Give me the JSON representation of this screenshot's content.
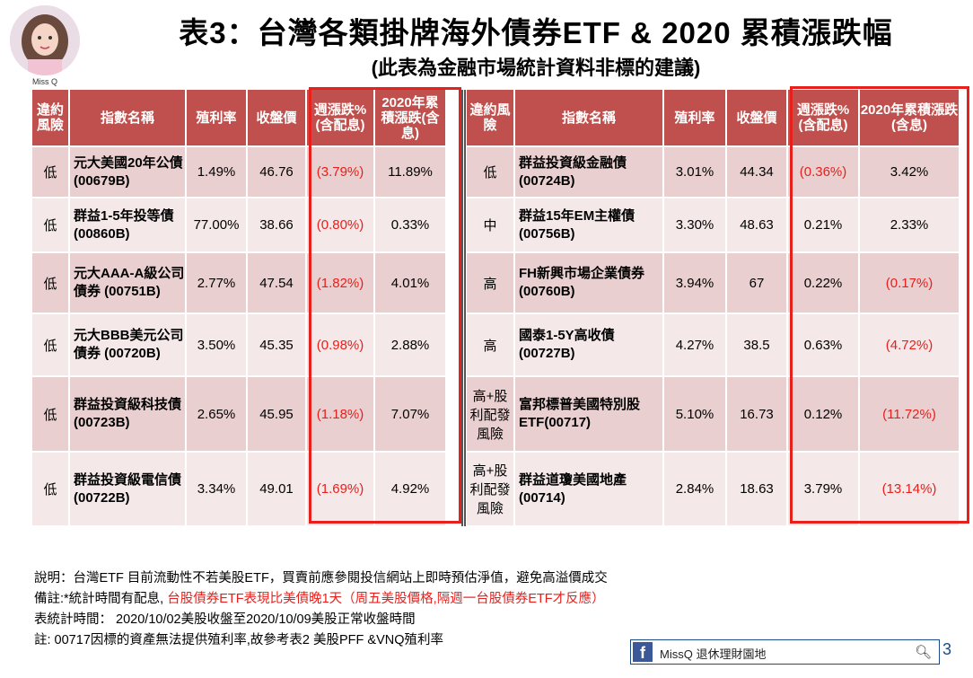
{
  "avatar_label": "Miss Q",
  "title": "表3：台灣各類掛牌海外債券ETF & 2020 累積漲跌幅",
  "subtitle": "(此表為金融市場統計資料非標的建議)",
  "headers": [
    "違約風險",
    "指數名稱",
    "殖利率",
    "收盤價",
    "週漲跌%(含配息)",
    "2020年累積漲跌(含息)"
  ],
  "left_rows": [
    {
      "risk": "低",
      "name": "元大美國20年公債 (00679B)",
      "yield": "1.49%",
      "close": "46.76",
      "week": "(3.79%)",
      "ytd": "11.89%",
      "week_neg": true,
      "ytd_neg": false
    },
    {
      "risk": "低",
      "name": "群益1-5年投等債 (00860B)",
      "yield": "77.00%",
      "close": "38.66",
      "week": "(0.80%)",
      "ytd": "0.33%",
      "week_neg": true,
      "ytd_neg": false
    },
    {
      "risk": "低",
      "name": "元大AAA-A級公司債券 (00751B)",
      "yield": "2.77%",
      "close": "47.54",
      "week": "(1.82%)",
      "ytd": "4.01%",
      "week_neg": true,
      "ytd_neg": false
    },
    {
      "risk": "低",
      "name": "元大BBB美元公司債券 (00720B)",
      "yield": "3.50%",
      "close": "45.35",
      "week": "(0.98%)",
      "ytd": "2.88%",
      "week_neg": true,
      "ytd_neg": false
    },
    {
      "risk": "低",
      "name": "群益投資級科技債(00723B)",
      "yield": "2.65%",
      "close": "45.95",
      "week": "(1.18%)",
      "ytd": "7.07%",
      "week_neg": true,
      "ytd_neg": false
    },
    {
      "risk": "低",
      "name": "群益投資級電信債(00722B)",
      "yield": "3.34%",
      "close": "49.01",
      "week": "(1.69%)",
      "ytd": "4.92%",
      "week_neg": true,
      "ytd_neg": false
    }
  ],
  "right_rows": [
    {
      "risk": "低",
      "name": "群益投資級金融債 (00724B)",
      "yield": "3.01%",
      "close": "44.34",
      "week": "(0.36%)",
      "ytd": "3.42%",
      "week_neg": true,
      "ytd_neg": false
    },
    {
      "risk": "中",
      "name": "群益15年EM主權債 (00756B)",
      "yield": "3.30%",
      "close": "48.63",
      "week": "0.21%",
      "ytd": "2.33%",
      "week_neg": false,
      "ytd_neg": false
    },
    {
      "risk": "高",
      "name": "FH新興市場企業債券 (00760B)",
      "yield": "3.94%",
      "close": "67",
      "week": "0.22%",
      "ytd": "(0.17%)",
      "week_neg": false,
      "ytd_neg": true
    },
    {
      "risk": "高",
      "name": "國泰1-5Y高收債 (00727B)",
      "yield": "4.27%",
      "close": "38.5",
      "week": "0.63%",
      "ytd": "(4.72%)",
      "week_neg": false,
      "ytd_neg": true
    },
    {
      "risk": "高+股利配發風險",
      "name": "富邦標普美國特別股ETF(00717)",
      "yield": "5.10%",
      "close": "16.73",
      "week": "0.12%",
      "ytd": "(11.72%)",
      "week_neg": false,
      "ytd_neg": true
    },
    {
      "risk": "高+股利配發風險",
      "name": "群益道瓊美國地產 (00714)",
      "yield": "2.84%",
      "close": "18.63",
      "week": "3.79%",
      "ytd": "(13.14%)",
      "week_neg": false,
      "ytd_neg": true
    }
  ],
  "notes": {
    "line1": "說明：台灣ETF 目前流動性不若美股ETF，買賣前應參閱投信網站上即時預估淨值，避免高溢價成交",
    "line2_a": "備註:*統計時間有配息, ",
    "line2_b": "台股債券ETF表現比美債晚1天（周五美股價格,隔週一台股債券ETF才反應）",
    "line3": "表統計時間： 2020/10/02美股收盤至2020/10/09美股正常收盤時間",
    "line4": "註: 00717因標的資產無法提供殖利率,故參考表2  美股PFF &VNQ殖利率"
  },
  "fb": {
    "logo": "f",
    "label": "MissQ 退休理財園地",
    "page": "3"
  }
}
